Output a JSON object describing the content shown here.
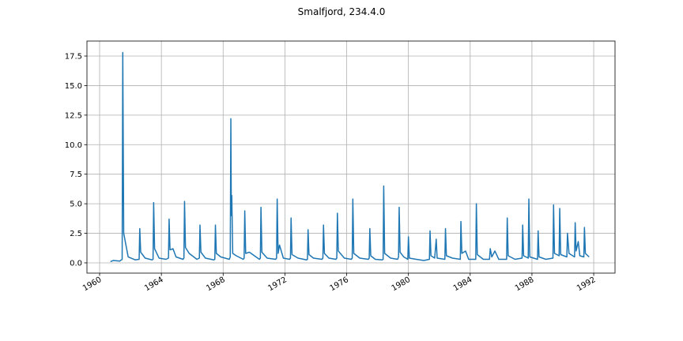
{
  "chart_data": {
    "type": "line",
    "title": "Smalfjord, 234.4.0",
    "x": [
      1960.7,
      1960.9,
      1961.3,
      1961.46,
      1961.5,
      1961.56,
      1961.85,
      1962.3,
      1962.56,
      1962.6,
      1962.66,
      1962.95,
      1963.4,
      1963.46,
      1963.5,
      1963.56,
      1963.85,
      1964.3,
      1964.46,
      1964.5,
      1964.56,
      1964.75,
      1964.95,
      1965.4,
      1965.46,
      1965.5,
      1965.56,
      1965.8,
      1966.3,
      1966.46,
      1966.5,
      1966.56,
      1966.85,
      1967.4,
      1967.46,
      1967.5,
      1967.56,
      1967.85,
      1968.4,
      1968.46,
      1968.5,
      1968.53,
      1968.56,
      1968.62,
      1968.85,
      1969.3,
      1969.36,
      1969.4,
      1969.46,
      1969.7,
      1970.35,
      1970.41,
      1970.45,
      1970.51,
      1970.85,
      1971.4,
      1971.46,
      1971.5,
      1971.56,
      1971.65,
      1971.9,
      1972.3,
      1972.36,
      1972.4,
      1972.46,
      1972.85,
      1973.4,
      1973.46,
      1973.5,
      1973.56,
      1973.85,
      1974.4,
      1974.46,
      1974.5,
      1974.56,
      1974.85,
      1975.3,
      1975.36,
      1975.4,
      1975.46,
      1975.85,
      1976.3,
      1976.36,
      1976.4,
      1976.46,
      1976.85,
      1977.4,
      1977.46,
      1977.5,
      1977.56,
      1977.85,
      1978.3,
      1978.36,
      1978.4,
      1978.46,
      1978.85,
      1979.3,
      1979.36,
      1979.4,
      1979.46,
      1979.7,
      1979.96,
      1980.0,
      1980.06,
      1980.5,
      1981.0,
      1981.36,
      1981.4,
      1981.46,
      1981.7,
      1981.8,
      1981.86,
      1982.36,
      1982.4,
      1982.46,
      1982.85,
      1983.36,
      1983.4,
      1983.46,
      1983.7,
      1983.9,
      1984.36,
      1984.4,
      1984.46,
      1984.85,
      1985.25,
      1985.3,
      1985.4,
      1985.6,
      1985.85,
      1986.36,
      1986.4,
      1986.46,
      1986.9,
      1987.36,
      1987.4,
      1987.46,
      1987.76,
      1987.8,
      1987.86,
      1988.36,
      1988.4,
      1988.46,
      1988.9,
      1989.36,
      1989.4,
      1989.46,
      1989.76,
      1989.8,
      1989.86,
      1990.26,
      1990.3,
      1990.4,
      1990.76,
      1990.8,
      1990.86,
      1991.0,
      1991.1,
      1991.36,
      1991.4,
      1991.46,
      1991.7
    ],
    "series": [
      {
        "color": "#1f77b4",
        "values": [
          0.1,
          0.2,
          0.15,
          0.3,
          17.8,
          2.5,
          0.5,
          0.25,
          0.3,
          2.9,
          0.9,
          0.4,
          0.25,
          0.3,
          5.1,
          1.2,
          0.4,
          0.3,
          0.4,
          3.7,
          1.1,
          1.2,
          0.5,
          0.3,
          0.4,
          5.2,
          1.3,
          0.8,
          0.3,
          0.4,
          3.2,
          0.9,
          0.4,
          0.25,
          0.3,
          3.2,
          0.8,
          0.5,
          0.3,
          0.5,
          12.2,
          4.0,
          5.7,
          0.8,
          0.6,
          0.3,
          0.4,
          4.4,
          0.8,
          0.9,
          0.3,
          0.4,
          4.7,
          0.9,
          0.4,
          0.3,
          0.4,
          5.4,
          0.8,
          1.5,
          0.4,
          0.3,
          0.4,
          3.8,
          0.7,
          0.4,
          0.25,
          0.3,
          2.8,
          0.7,
          0.4,
          0.3,
          0.4,
          3.2,
          0.8,
          0.4,
          0.3,
          0.4,
          4.2,
          1.0,
          0.4,
          0.3,
          0.4,
          5.4,
          0.8,
          0.4,
          0.3,
          0.4,
          2.9,
          0.6,
          0.3,
          0.25,
          0.3,
          6.5,
          0.8,
          0.4,
          0.3,
          0.5,
          4.7,
          0.9,
          0.5,
          0.3,
          2.2,
          0.4,
          0.3,
          0.2,
          0.3,
          2.7,
          0.6,
          0.4,
          2.0,
          0.4,
          0.3,
          2.9,
          0.6,
          0.4,
          0.3,
          3.5,
          0.8,
          1.0,
          0.3,
          0.3,
          5.0,
          0.7,
          0.3,
          0.3,
          1.2,
          0.5,
          1.0,
          0.3,
          0.3,
          3.8,
          0.6,
          0.3,
          0.4,
          3.2,
          0.6,
          0.4,
          5.4,
          0.5,
          0.3,
          2.7,
          0.5,
          0.3,
          0.4,
          4.9,
          0.8,
          0.6,
          4.6,
          0.7,
          0.5,
          2.5,
          0.8,
          0.5,
          3.4,
          1.0,
          1.8,
          0.6,
          0.5,
          3.0,
          0.8,
          0.5
        ]
      }
    ],
    "xlim": [
      1959.18,
      1993.38
    ],
    "xticks": [
      1960,
      1964,
      1968,
      1972,
      1976,
      1980,
      1984,
      1988,
      1992
    ],
    "ylim": [
      -0.87,
      18.77
    ],
    "yticks": [
      {
        "value": 0,
        "label": "0.0"
      },
      2.5,
      {
        "value": 5,
        "label": "5.0"
      },
      7.5,
      {
        "value": 10,
        "label": "10.0"
      },
      12.5,
      {
        "value": 15,
        "label": "15.0"
      },
      17.5
    ],
    "grid": true
  }
}
